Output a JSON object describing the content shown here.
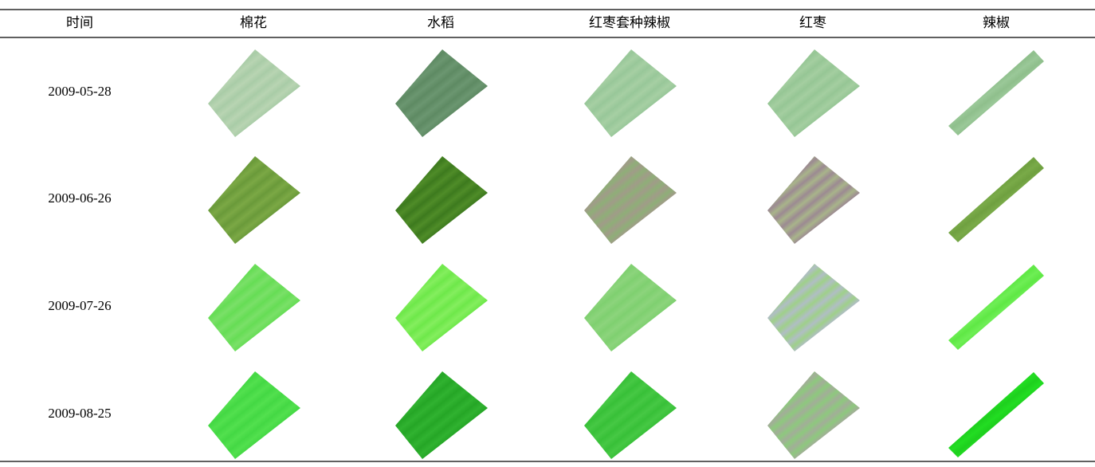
{
  "table": {
    "columns": [
      "时间",
      "棉花",
      "水稻",
      "红枣套种辣椒",
      "红枣",
      "辣椒"
    ],
    "rows": [
      "2009-05-28",
      "2009-06-26",
      "2009-07-26",
      "2009-08-25"
    ]
  }
}
